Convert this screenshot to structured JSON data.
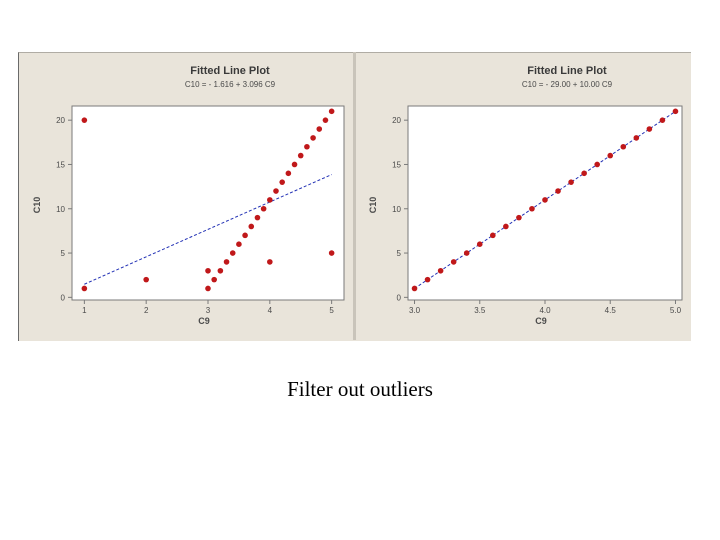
{
  "slide": {
    "caption": "Filter out outliers"
  },
  "colors": {
    "panel": "#e9e4da",
    "plot_area": "#ffffff",
    "point": "#c0181a",
    "fit_line": "#2231b5",
    "text": "#4a4a4a"
  },
  "chart_data": [
    {
      "type": "scatter",
      "title": "Fitted Line Plot",
      "subtitle": "C10 = - 1.616 + 3.096 C9",
      "xlabel": "C9",
      "ylabel": "C10",
      "xlim": [
        0.8,
        5.2
      ],
      "ylim": [
        -0.3,
        21.6
      ],
      "xticks": [
        1,
        2,
        3,
        4,
        5
      ],
      "xtick_labels": [
        "1",
        "2",
        "3",
        "4",
        "5"
      ],
      "yticks": [
        0,
        5,
        10,
        15,
        20
      ],
      "ytick_labels": [
        "0",
        "5",
        "10",
        "15",
        "20"
      ],
      "grid": false,
      "series": [
        {
          "kind": "points",
          "x": [
            1.0,
            1.0,
            2.0,
            3.0,
            3.0,
            3.1,
            3.2,
            3.3,
            3.4,
            3.5,
            3.6,
            3.7,
            3.8,
            3.9,
            4.0,
            4.0,
            4.1,
            4.2,
            4.3,
            4.4,
            4.5,
            4.6,
            4.7,
            4.8,
            4.9,
            5.0,
            5.0
          ],
          "y": [
            1,
            20,
            2,
            1,
            3,
            2,
            3,
            4,
            5,
            6,
            7,
            8,
            9,
            10,
            11,
            4,
            12,
            13,
            14,
            15,
            16,
            17,
            18,
            19,
            20,
            21,
            5
          ]
        },
        {
          "kind": "fit",
          "x": [
            1.0,
            5.0
          ],
          "y": [
            1.48,
            13.86
          ]
        }
      ]
    },
    {
      "type": "scatter",
      "title": "Fitted Line Plot",
      "subtitle": "C10 = - 29.00 + 10.00 C9",
      "xlabel": "C9",
      "ylabel": "C10",
      "xlim": [
        2.95,
        5.05
      ],
      "ylim": [
        -0.3,
        21.6
      ],
      "xticks": [
        3.0,
        3.5,
        4.0,
        4.5,
        5.0
      ],
      "xtick_labels": [
        "3.0",
        "3.5",
        "4.0",
        "4.5",
        "5.0"
      ],
      "yticks": [
        0,
        5,
        10,
        15,
        20
      ],
      "ytick_labels": [
        "0",
        "5",
        "10",
        "15",
        "20"
      ],
      "grid": false,
      "series": [
        {
          "kind": "points",
          "x": [
            3.0,
            3.1,
            3.2,
            3.3,
            3.4,
            3.5,
            3.6,
            3.7,
            3.8,
            3.9,
            4.0,
            4.1,
            4.2,
            4.3,
            4.4,
            4.5,
            4.6,
            4.7,
            4.8,
            4.9,
            5.0
          ],
          "y": [
            1,
            2,
            3,
            4,
            5,
            6,
            7,
            8,
            9,
            10,
            11,
            12,
            13,
            14,
            15,
            16,
            17,
            18,
            19,
            20,
            21
          ]
        },
        {
          "kind": "fit",
          "x": [
            3.0,
            5.0
          ],
          "y": [
            1,
            21
          ]
        }
      ]
    }
  ]
}
